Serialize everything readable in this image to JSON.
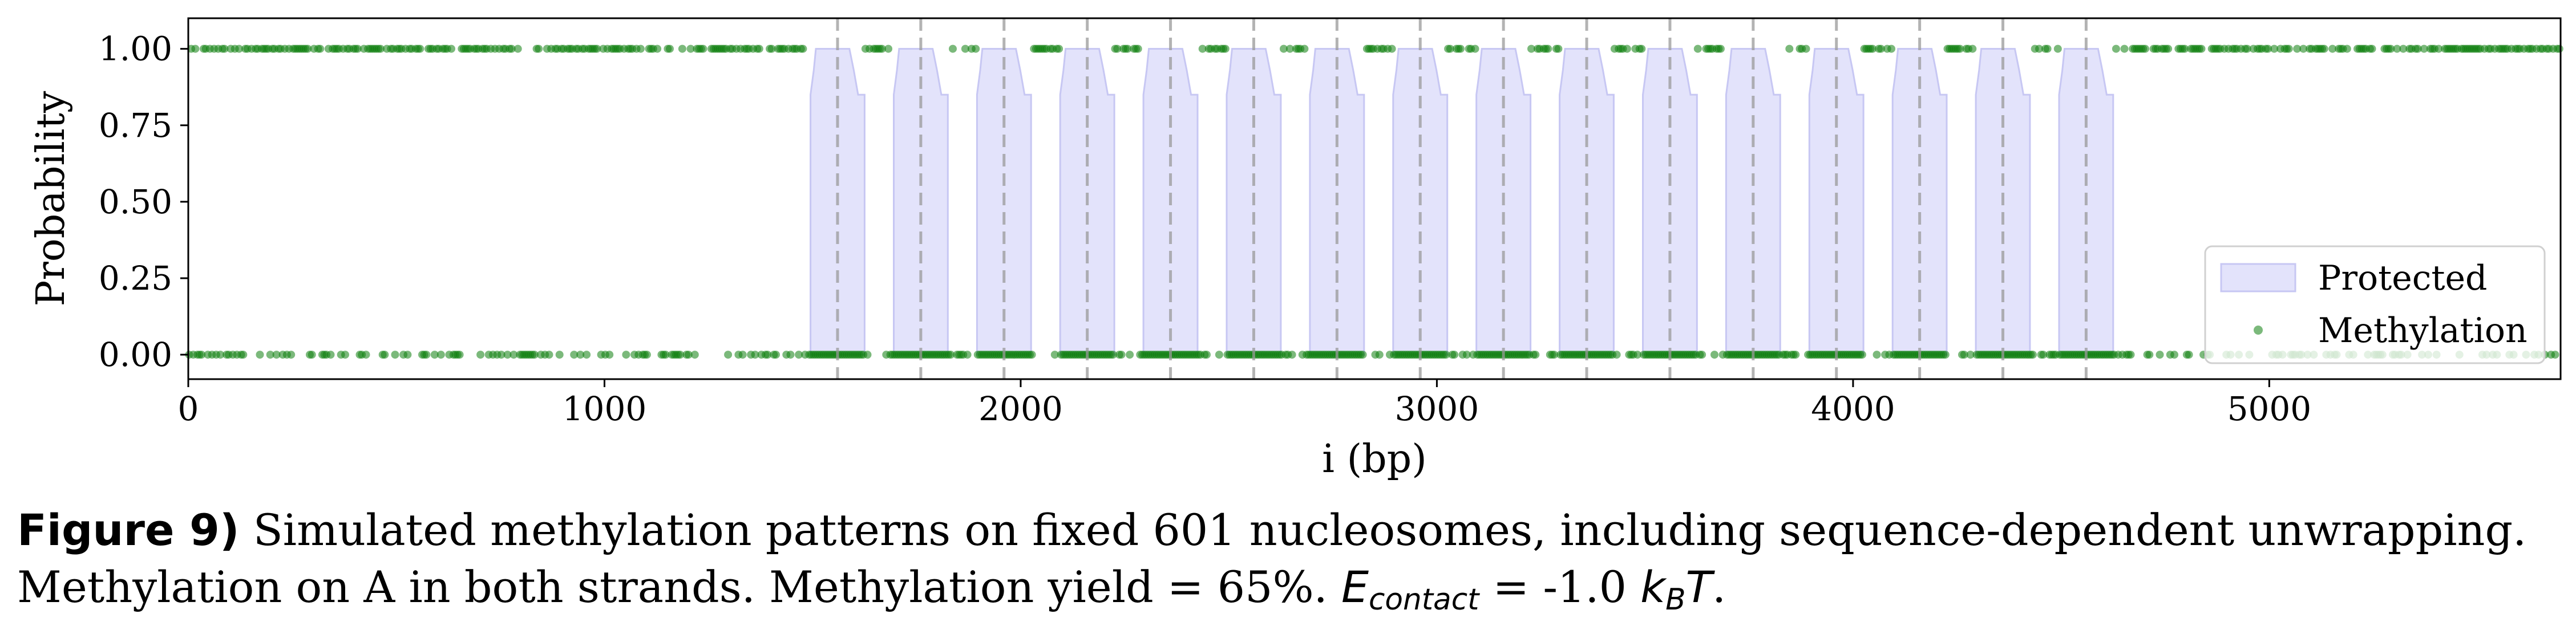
{
  "chart_data": {
    "type": "scatter",
    "xlabel": "i (bp)",
    "ylabel": "Probability",
    "xlim": [
      0,
      5700
    ],
    "ylim": [
      -0.08,
      1.1
    ],
    "xticks": [
      0,
      1000,
      2000,
      3000,
      4000,
      5000
    ],
    "xtick_labels": [
      "0",
      "1000",
      "2000",
      "3000",
      "4000",
      "5000"
    ],
    "yticks": [
      0.0,
      0.25,
      0.5,
      0.75,
      1.0
    ],
    "ytick_labels": [
      "0.00",
      "0.25",
      "0.50",
      "0.75",
      "1.00"
    ],
    "grid": false,
    "legend": {
      "placement": "lower-right",
      "entries": [
        {
          "label": "Protected",
          "kind": "area",
          "color": "#e3e3fb",
          "edge": "#c7c7f3"
        },
        {
          "label": "Methylation",
          "kind": "point",
          "color": "#0f7f0f"
        }
      ]
    },
    "nucleosome_dyads": [
      1560,
      1760,
      1960,
      2160,
      2360,
      2560,
      2760,
      2960,
      3160,
      3360,
      3560,
      3760,
      3960,
      4160,
      4360,
      4560
    ],
    "protected_regions": [
      {
        "start": 1495,
        "end": 1625
      },
      {
        "start": 1695,
        "end": 1825
      },
      {
        "start": 1895,
        "end": 2025
      },
      {
        "start": 2095,
        "end": 2225
      },
      {
        "start": 2295,
        "end": 2425
      },
      {
        "start": 2495,
        "end": 2625
      },
      {
        "start": 2695,
        "end": 2825
      },
      {
        "start": 2895,
        "end": 3025
      },
      {
        "start": 3095,
        "end": 3225
      },
      {
        "start": 3295,
        "end": 3425
      },
      {
        "start": 3495,
        "end": 3625
      },
      {
        "start": 3695,
        "end": 3825
      },
      {
        "start": 3895,
        "end": 4025
      },
      {
        "start": 4095,
        "end": 4225
      },
      {
        "start": 4295,
        "end": 4425
      },
      {
        "start": 4495,
        "end": 4625
      }
    ],
    "protected_profile": {
      "max": 1.0,
      "shoulder": 0.93,
      "flank": 0.85
    },
    "methylation_values": [
      0,
      1
    ],
    "methylation_yield": 0.65,
    "colors": {
      "methylation": "#0f7f0f",
      "protected_fill": "#e3e3fb",
      "protected_edge": "#c7c7f3",
      "dyad_line": "#9a9a9a"
    }
  },
  "caption": {
    "label": "Figure 9)",
    "line1": " Simulated methylation patterns on fixed 601 nucleosomes, including sequence-dependent unwrapping.",
    "line2_a": "Methylation on A in both strands. Methylation yield = 65%. ",
    "e_symbol": "E",
    "e_sub": "contact",
    "line2_b": " = -1.0 ",
    "k_symbol": "k",
    "k_sub": "B",
    "t_symbol": "T",
    "line2_c": "."
  }
}
